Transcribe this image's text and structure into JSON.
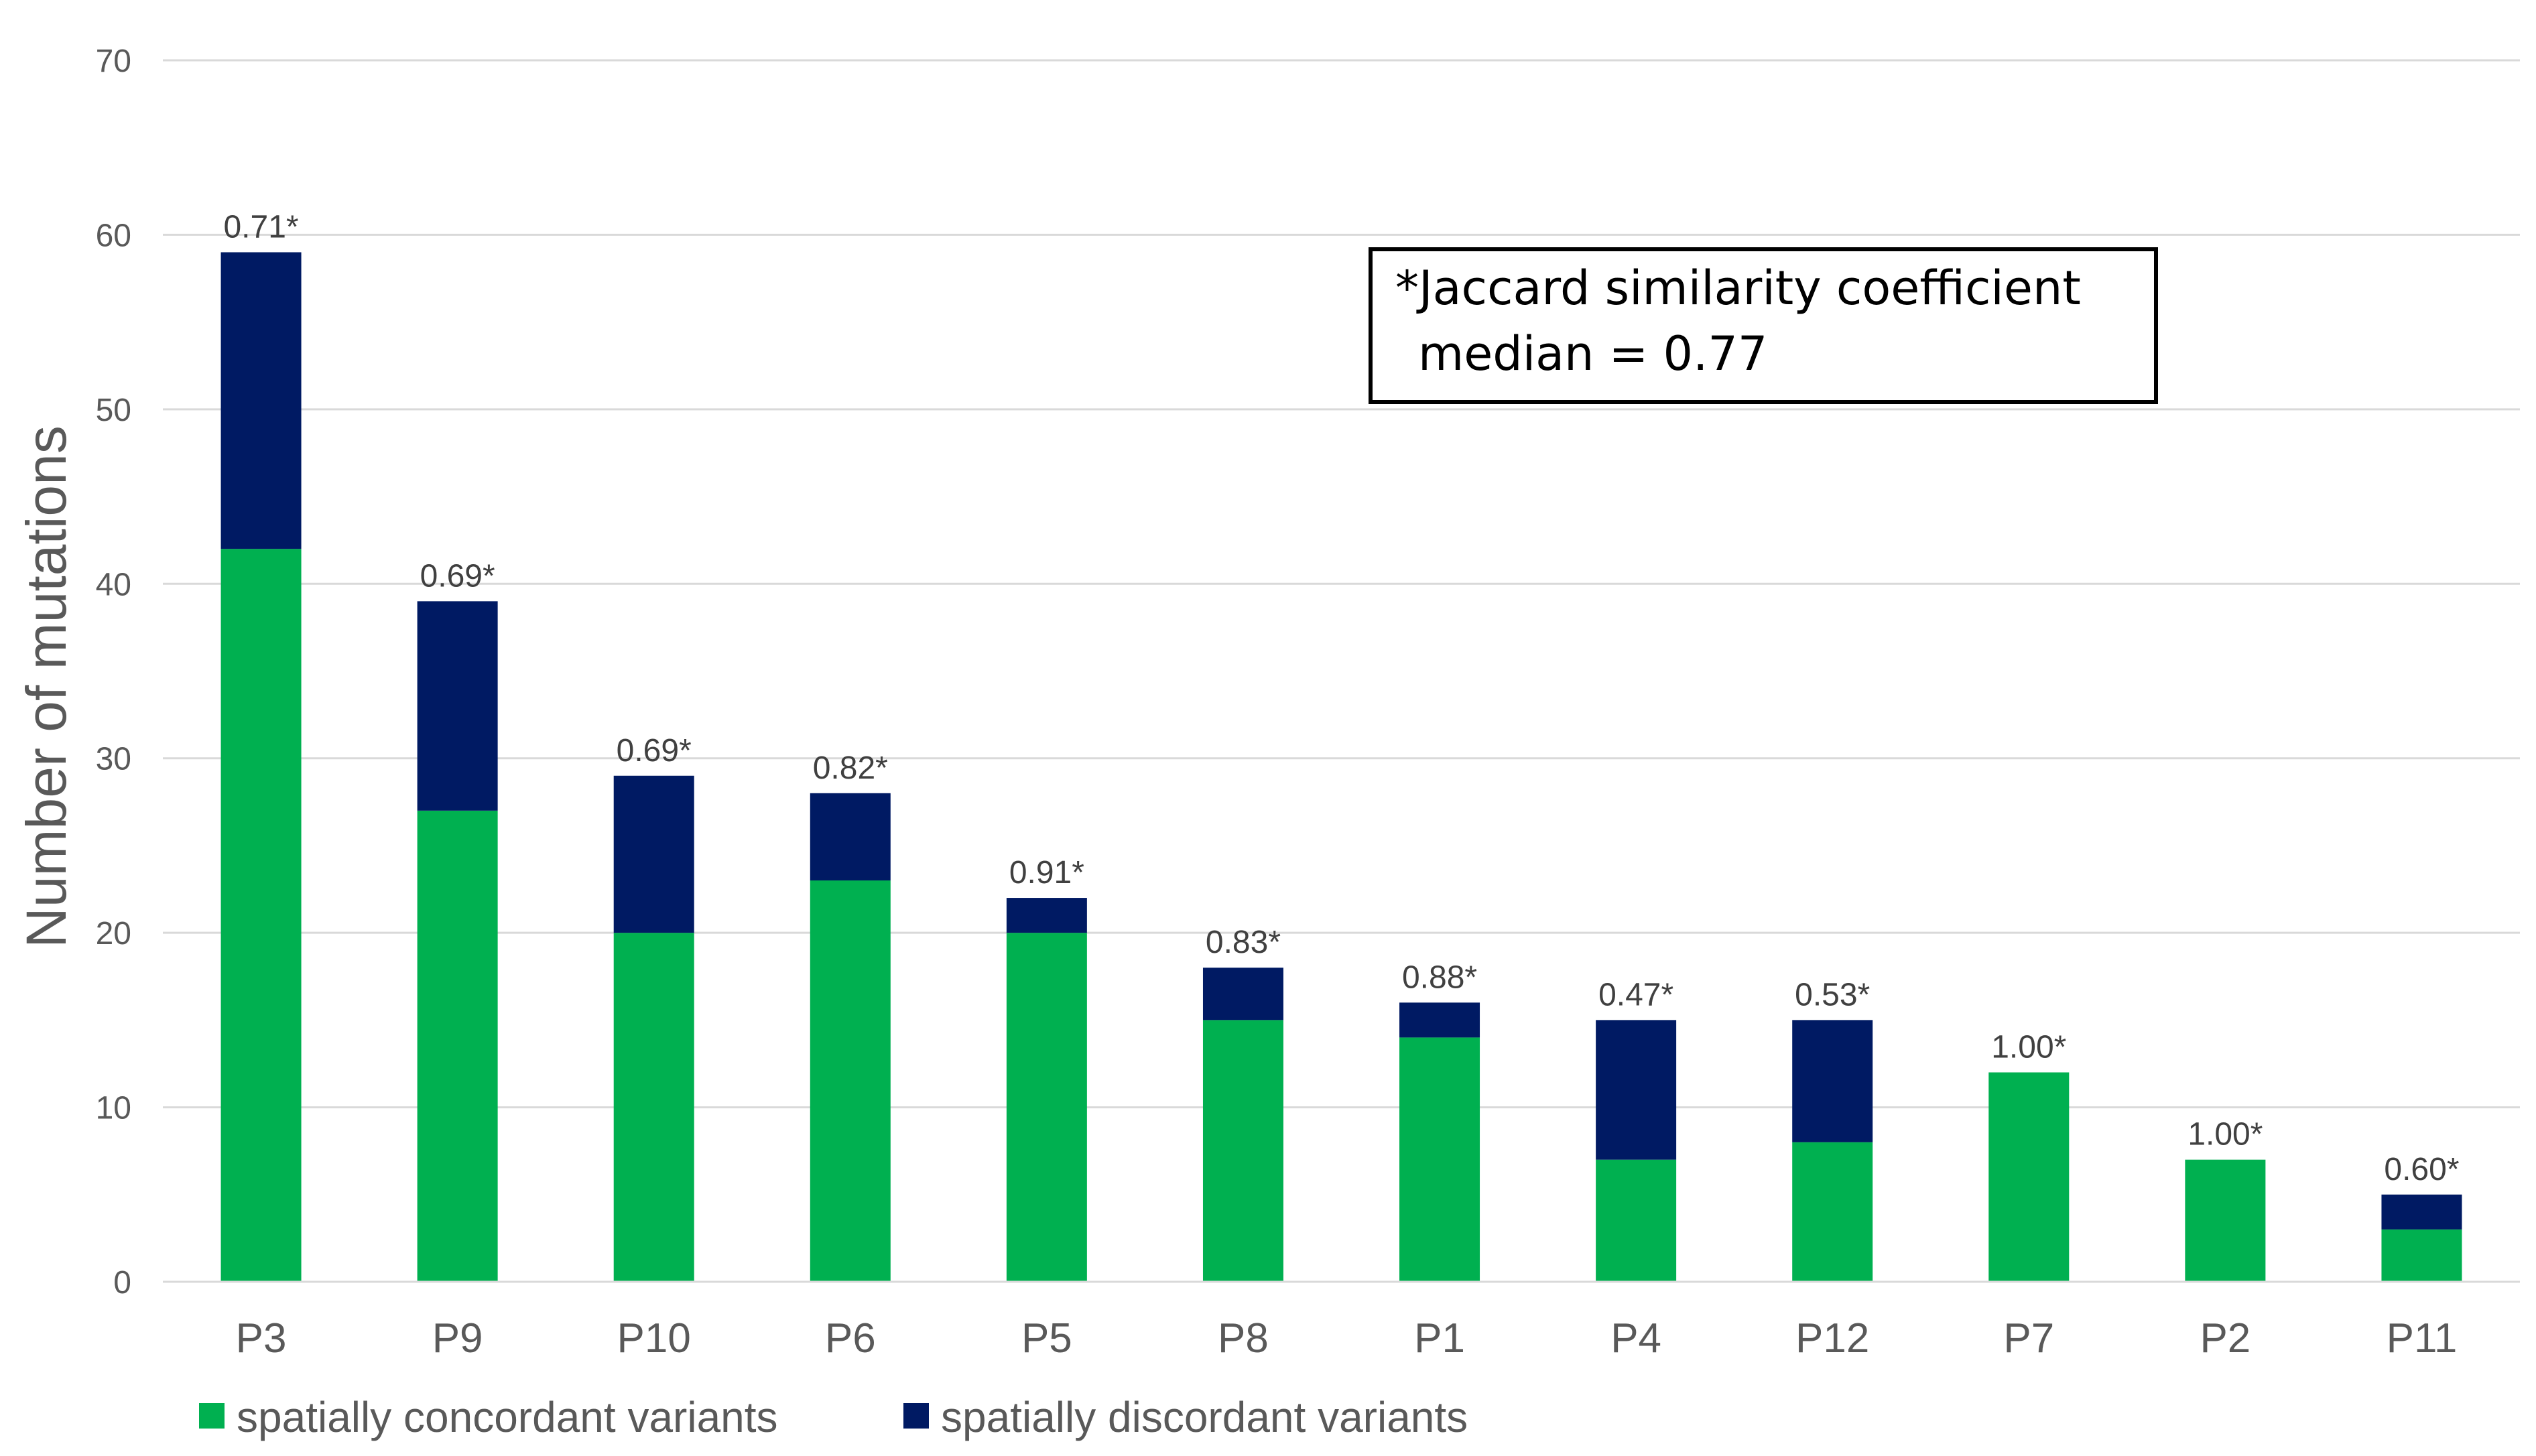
{
  "chart_data": {
    "type": "bar",
    "stacked": true,
    "categories": [
      "P3",
      "P9",
      "P10",
      "P6",
      "P5",
      "P8",
      "P1",
      "P4",
      "P12",
      "P7",
      "P2",
      "P11"
    ],
    "series": [
      {
        "name": "spatially concordant variants",
        "color": "#00B050",
        "values": [
          42,
          27,
          20,
          23,
          20,
          15,
          14,
          7,
          8,
          12,
          7,
          3
        ]
      },
      {
        "name": "spatially discordant variants",
        "color": "#001A63",
        "values": [
          17,
          12,
          9,
          5,
          2,
          3,
          2,
          8,
          7,
          0,
          0,
          2
        ]
      }
    ],
    "data_labels": [
      "0.71*",
      "0.69*",
      "0.69*",
      "0.82*",
      "0.91*",
      "0.83*",
      "0.88*",
      "0.47*",
      "0.53*",
      "1.00*",
      "1.00*",
      "0.60*"
    ],
    "ylabel": "Number of mutations",
    "xlabel": "",
    "ylim": [
      0,
      70
    ],
    "yticks": [
      0,
      10,
      20,
      30,
      40,
      50,
      60,
      70
    ],
    "grid": true,
    "legend_position": "bottom-left",
    "annotation": {
      "line1": "*Jaccard similarity coefficient",
      "line2": "median = 0.77"
    }
  }
}
